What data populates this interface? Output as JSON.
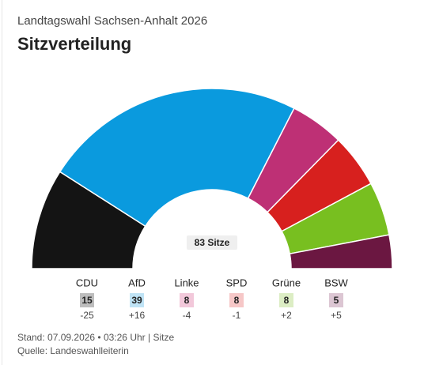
{
  "chart_data": {
    "type": "parliament",
    "supertitle": "Landtagswahl Sachsen-Anhalt 2026",
    "title": "Sitzverteilung",
    "center_label": "83 Sitze",
    "categories": [
      "CDU",
      "AfD",
      "Linke",
      "SPD",
      "Grüne",
      "BSW"
    ],
    "values": [
      15,
      39,
      8,
      8,
      8,
      5
    ],
    "colors": [
      "#141414",
      "#0a9ade",
      "#be3075",
      "#d7201e",
      "#78bf20",
      "#6b1741"
    ],
    "badge_colors": [
      "#bdbdbd",
      "#bfe3f5",
      "#f2c8da",
      "#f6c7c7",
      "#dcedc4",
      "#dcc6d3"
    ],
    "changes": [
      -25,
      {
        "value": 16,
        "label": "+16"
      },
      -4,
      -1,
      {
        "value": 2,
        "label": "+2"
      },
      {
        "value": 5,
        "label": "+5"
      }
    ],
    "footer": "Stand: 07.09.2026 • 03:26 Uhr | Sitze",
    "source": "Quelle: Landeswahlleiterin"
  }
}
